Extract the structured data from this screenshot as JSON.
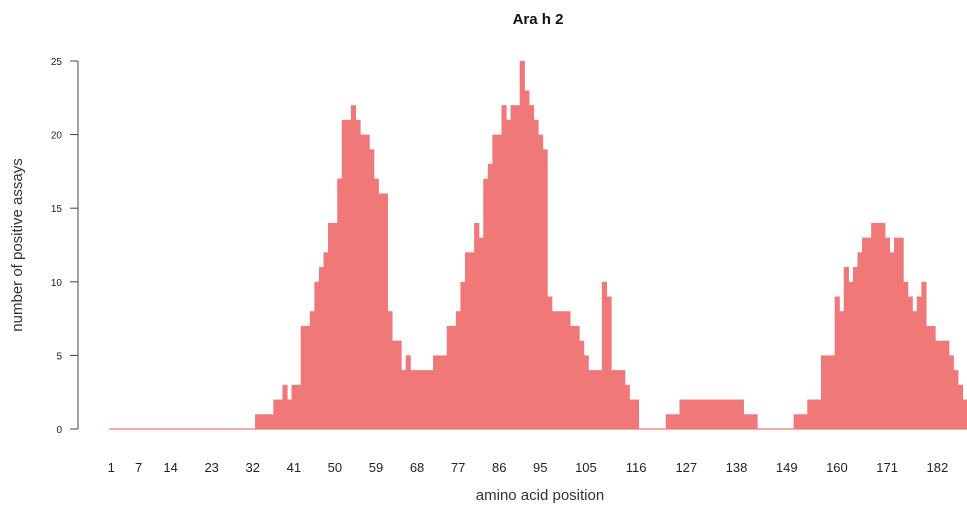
{
  "chart_data": {
    "type": "bar",
    "title": "Ara h 2",
    "xlabel": "amino acid position",
    "ylabel": "number of positive assays",
    "xlim": [
      1,
      187
    ],
    "ylim": [
      0,
      25
    ],
    "yticks": [
      0,
      5,
      10,
      15,
      20,
      25
    ],
    "xtick_labels": [
      "1",
      "7",
      "14",
      "23",
      "32",
      "41",
      "50",
      "59",
      "68",
      "77",
      "86",
      "95",
      "105",
      "116",
      "127",
      "138",
      "149",
      "160",
      "171",
      "182"
    ],
    "bar_color": "#f07878",
    "grid": false,
    "positions_start": 1,
    "values": [
      0,
      0,
      0,
      0,
      0,
      0,
      0,
      0,
      0,
      0,
      0,
      0,
      0,
      0,
      0,
      0,
      0,
      0,
      0,
      0,
      0,
      0,
      0,
      0,
      0,
      0,
      0,
      0,
      0,
      0,
      0,
      0,
      1,
      1,
      1,
      1,
      2,
      2,
      3,
      2,
      3,
      3,
      7,
      7,
      8,
      10,
      11,
      12,
      14,
      14,
      17,
      21,
      21,
      22,
      21,
      20,
      20,
      19,
      17,
      16,
      16,
      8,
      6,
      6,
      4,
      5,
      4,
      4,
      4,
      4,
      4,
      5,
      5,
      5,
      7,
      7,
      8,
      10,
      12,
      12,
      14,
      13,
      17,
      18,
      20,
      20,
      22,
      21,
      22,
      22,
      25,
      23,
      22,
      21,
      20,
      19,
      9,
      8,
      8,
      8,
      8,
      7,
      7,
      6,
      5,
      4,
      4,
      4,
      10,
      9,
      4,
      4,
      4,
      3,
      2,
      2,
      0,
      0,
      0,
      0,
      0,
      0,
      1,
      1,
      1,
      2,
      2,
      2,
      2,
      2,
      2,
      2,
      2,
      2,
      2,
      2,
      2,
      2,
      2,
      1,
      1,
      1,
      0,
      0,
      0,
      0,
      0,
      0,
      0,
      0,
      1,
      1,
      1,
      2,
      2,
      2,
      5,
      5,
      5,
      9,
      8,
      11,
      10,
      11,
      12,
      13,
      13,
      14,
      14,
      14,
      13,
      12,
      13,
      13,
      10,
      9,
      8,
      9,
      10,
      7,
      7,
      6,
      6,
      6,
      5,
      4,
      3,
      2
    ]
  }
}
